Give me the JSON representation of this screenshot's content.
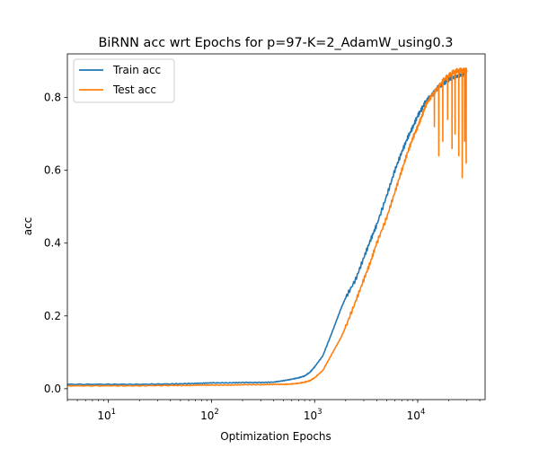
{
  "chart_data": {
    "type": "line",
    "title": "BiRNN acc wrt Epochs for p=97-K=2_AdamW_using0.3",
    "xlabel": "Optimization Epochs",
    "ylabel": "acc",
    "xscale": "log",
    "xlim": [
      4,
      45000
    ],
    "ylim": [
      -0.03,
      0.92
    ],
    "xticks": [
      {
        "value": 10,
        "base": "10",
        "exp": "1"
      },
      {
        "value": 100,
        "base": "10",
        "exp": "2"
      },
      {
        "value": 1000,
        "base": "10",
        "exp": "3"
      },
      {
        "value": 10000,
        "base": "10",
        "exp": "4"
      }
    ],
    "yticks": [
      0.0,
      0.2,
      0.4,
      0.6,
      0.8
    ],
    "ytick_labels": [
      "0.0",
      "0.2",
      "0.4",
      "0.6",
      "0.8"
    ],
    "grid": false,
    "legend": "top-left",
    "series": [
      {
        "name": "Train acc",
        "color": "#1f77b4",
        "x": [
          4,
          10,
          20,
          40,
          60,
          80,
          100,
          150,
          200,
          300,
          400,
          500,
          600,
          700,
          800,
          900,
          1000,
          1200,
          1500,
          1800,
          2000,
          2500,
          3000,
          3500,
          4000,
          5000,
          6000,
          7000,
          8000,
          9000,
          10000,
          11000,
          12000,
          14000,
          16000,
          18000,
          20000,
          22000,
          25000,
          28000,
          30000
        ],
        "y": [
          0.012,
          0.012,
          0.012,
          0.013,
          0.014,
          0.015,
          0.016,
          0.016,
          0.017,
          0.017,
          0.018,
          0.022,
          0.026,
          0.03,
          0.035,
          0.045,
          0.06,
          0.09,
          0.16,
          0.22,
          0.25,
          0.3,
          0.36,
          0.41,
          0.45,
          0.53,
          0.6,
          0.65,
          0.69,
          0.72,
          0.75,
          0.77,
          0.79,
          0.81,
          0.83,
          0.84,
          0.85,
          0.855,
          0.86,
          0.865,
          0.87
        ]
      },
      {
        "name": "Test acc",
        "color": "#ff7f0e",
        "x": [
          4,
          10,
          20,
          40,
          60,
          80,
          100,
          150,
          200,
          300,
          400,
          500,
          600,
          700,
          800,
          900,
          1000,
          1200,
          1500,
          1800,
          2000,
          2500,
          3000,
          3500,
          4000,
          5000,
          6000,
          7000,
          8000,
          9000,
          10000,
          11000,
          12000,
          14000,
          16000,
          18000,
          20000,
          22000,
          25000,
          28000,
          30000
        ],
        "y": [
          0.008,
          0.008,
          0.008,
          0.009,
          0.009,
          0.01,
          0.01,
          0.01,
          0.011,
          0.011,
          0.012,
          0.012,
          0.013,
          0.015,
          0.018,
          0.022,
          0.03,
          0.05,
          0.1,
          0.14,
          0.17,
          0.24,
          0.3,
          0.35,
          0.4,
          0.47,
          0.54,
          0.6,
          0.65,
          0.69,
          0.72,
          0.75,
          0.78,
          0.81,
          0.83,
          0.85,
          0.86,
          0.87,
          0.875,
          0.875,
          0.875
        ],
        "dips": [
          {
            "x": 14500,
            "y": 0.72
          },
          {
            "x": 16000,
            "y": 0.64
          },
          {
            "x": 17500,
            "y": 0.68
          },
          {
            "x": 19500,
            "y": 0.74
          },
          {
            "x": 21500,
            "y": 0.66
          },
          {
            "x": 23000,
            "y": 0.7
          },
          {
            "x": 25000,
            "y": 0.64
          },
          {
            "x": 27000,
            "y": 0.58
          },
          {
            "x": 28500,
            "y": 0.68
          },
          {
            "x": 29500,
            "y": 0.62
          }
        ]
      }
    ]
  }
}
